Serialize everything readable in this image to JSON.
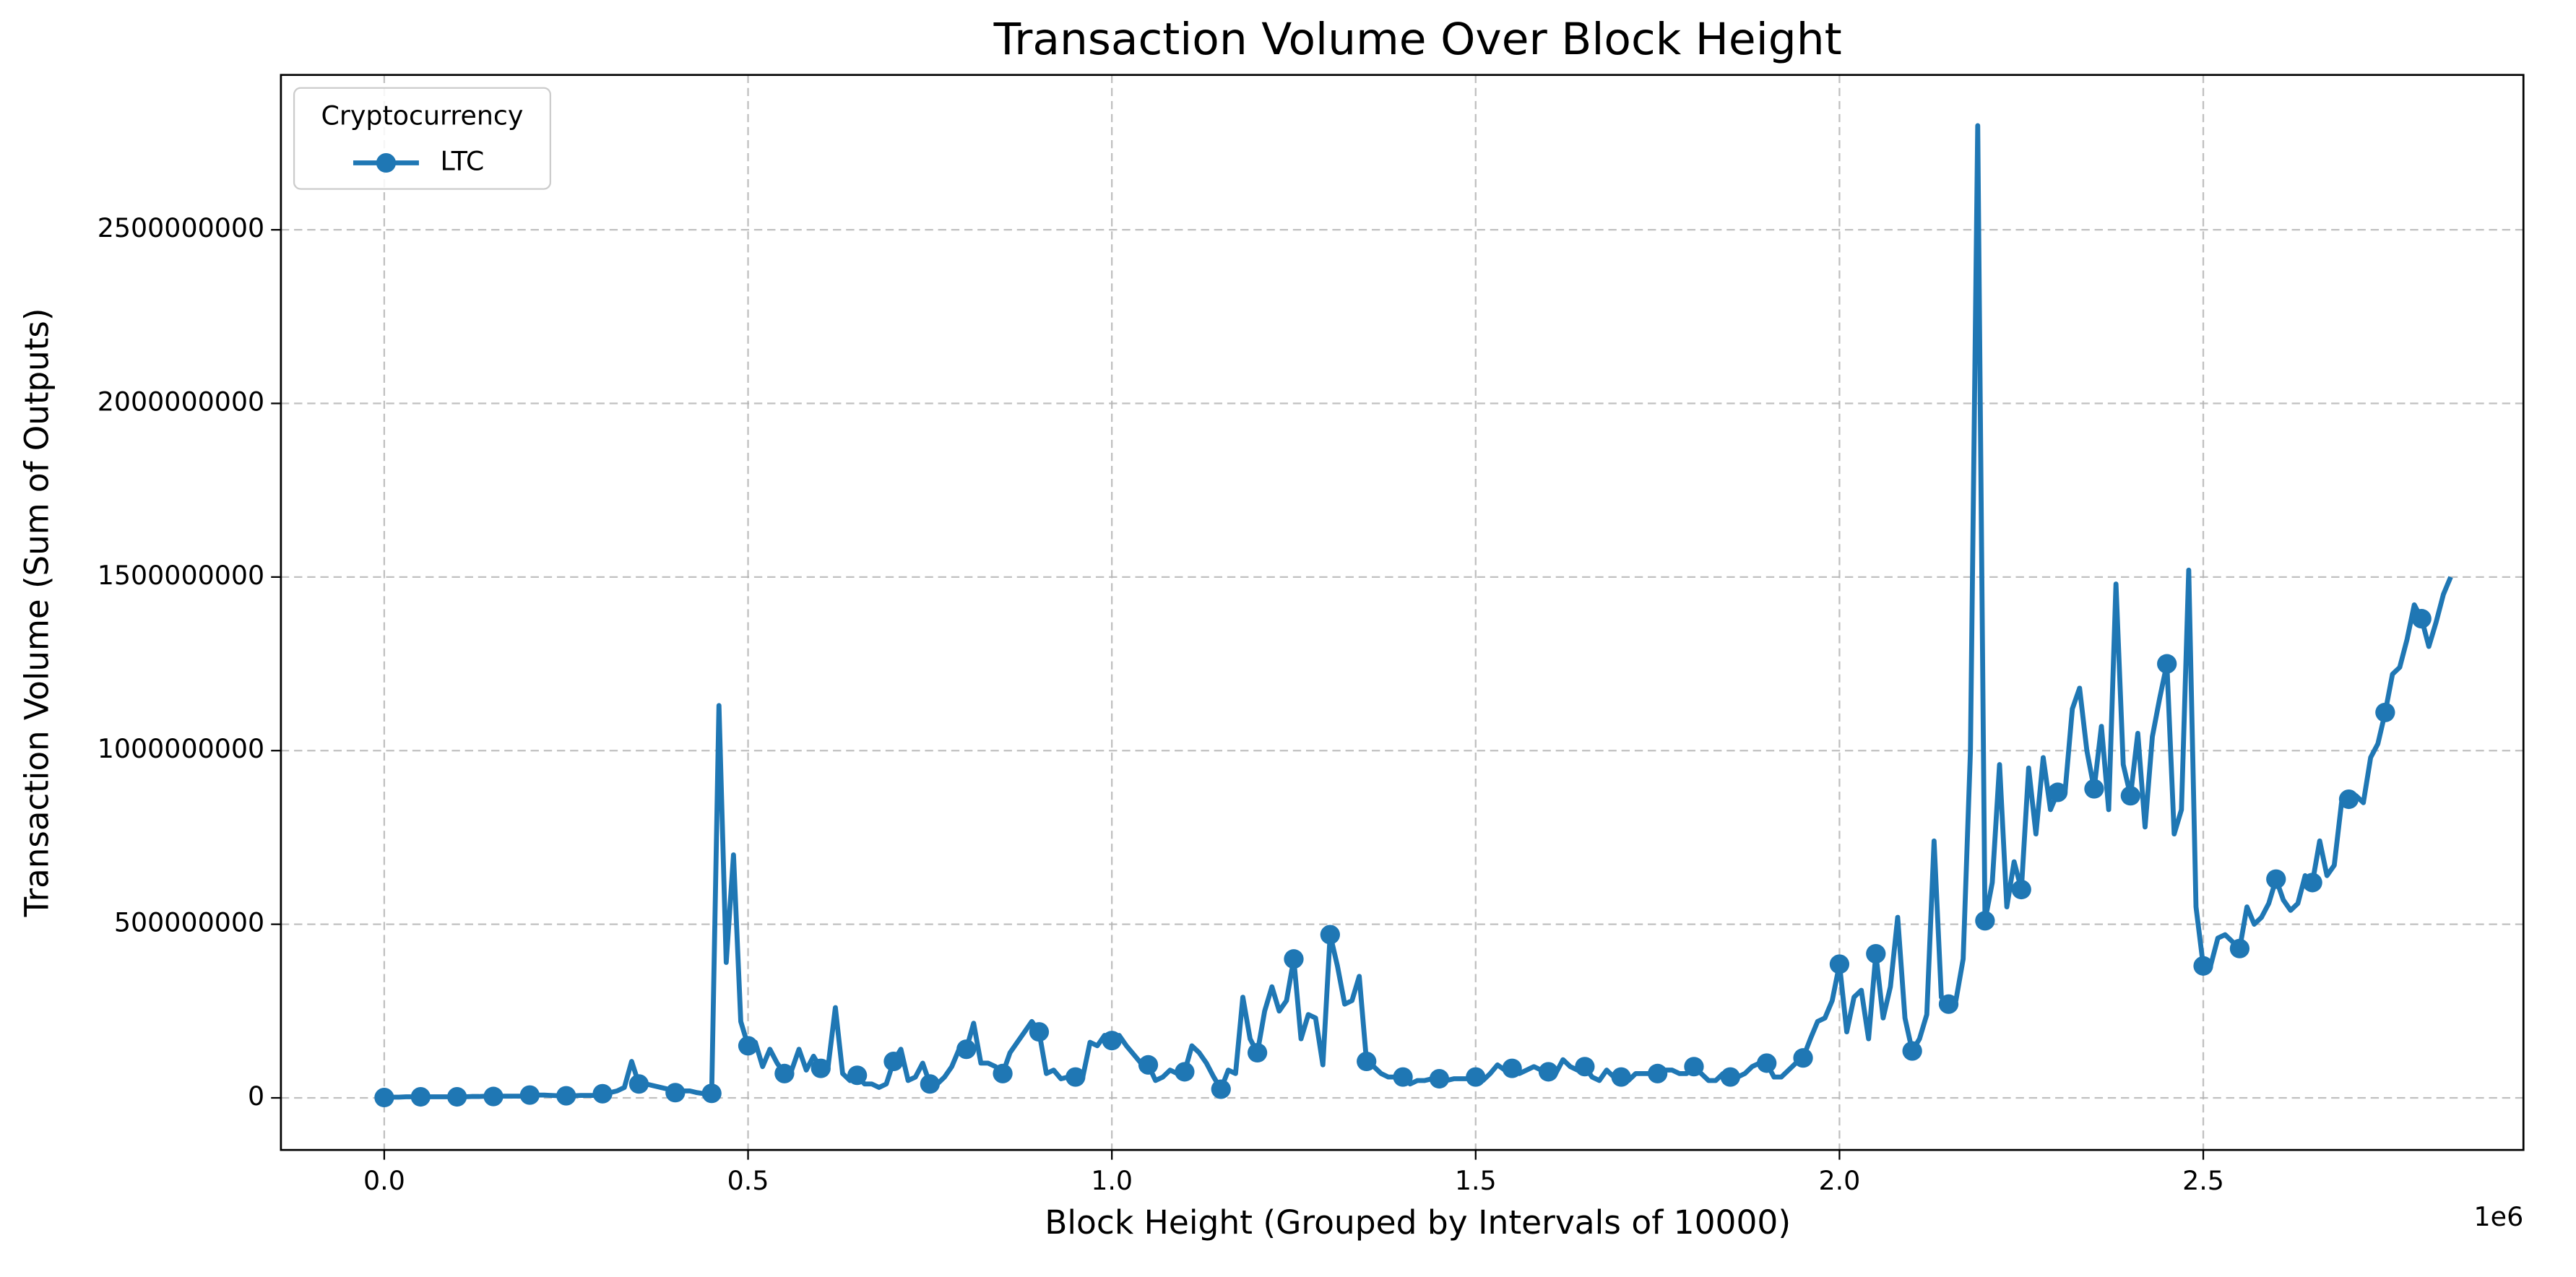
{
  "chart_data": {
    "type": "line",
    "title": "Transaction Volume Over Block Height",
    "xlabel": "Block Height (Grouped by Intervals of 10000)",
    "ylabel": "Transaction Volume (Sum of Outputs)",
    "x_offset_label": "1e6",
    "legend": {
      "title": "Cryptocurrency",
      "loc": "upper left"
    },
    "grid": true,
    "marker": "o",
    "markevery": 5,
    "xlim": [
      -142000,
      2940000
    ],
    "ylim": [
      -150000000,
      2946000000
    ],
    "xticks": [
      {
        "value": 0,
        "label": "0.0"
      },
      {
        "value": 500000,
        "label": "0.5"
      },
      {
        "value": 1000000,
        "label": "1.0"
      },
      {
        "value": 1500000,
        "label": "1.5"
      },
      {
        "value": 2000000,
        "label": "2.0"
      },
      {
        "value": 2500000,
        "label": "2.5"
      }
    ],
    "yticks": [
      0,
      500000000,
      1000000000,
      1500000000,
      2000000000,
      2500000000
    ],
    "x": [
      0,
      10000,
      20000,
      30000,
      40000,
      50000,
      60000,
      70000,
      80000,
      90000,
      100000,
      110000,
      120000,
      130000,
      140000,
      150000,
      160000,
      170000,
      180000,
      190000,
      200000,
      210000,
      220000,
      230000,
      240000,
      250000,
      260000,
      270000,
      280000,
      290000,
      300000,
      310000,
      320000,
      330000,
      340000,
      350000,
      360000,
      370000,
      380000,
      390000,
      400000,
      410000,
      420000,
      430000,
      440000,
      450000,
      460000,
      470000,
      480000,
      490000,
      500000,
      510000,
      520000,
      530000,
      540000,
      550000,
      560000,
      570000,
      580000,
      590000,
      600000,
      610000,
      620000,
      630000,
      640000,
      650000,
      660000,
      670000,
      680000,
      690000,
      700000,
      710000,
      720000,
      730000,
      740000,
      750000,
      760000,
      770000,
      780000,
      790000,
      800000,
      810000,
      820000,
      830000,
      840000,
      850000,
      860000,
      870000,
      880000,
      890000,
      900000,
      910000,
      920000,
      930000,
      940000,
      950000,
      960000,
      970000,
      980000,
      990000,
      1000000,
      1010000,
      1020000,
      1030000,
      1040000,
      1050000,
      1060000,
      1070000,
      1080000,
      1090000,
      1100000,
      1110000,
      1120000,
      1130000,
      1140000,
      1150000,
      1160000,
      1170000,
      1180000,
      1190000,
      1200000,
      1210000,
      1220000,
      1230000,
      1240000,
      1250000,
      1260000,
      1270000,
      1280000,
      1290000,
      1300000,
      1310000,
      1320000,
      1330000,
      1340000,
      1350000,
      1360000,
      1370000,
      1380000,
      1390000,
      1400000,
      1410000,
      1420000,
      1430000,
      1440000,
      1450000,
      1460000,
      1470000,
      1480000,
      1490000,
      1500000,
      1510000,
      1520000,
      1530000,
      1540000,
      1550000,
      1560000,
      1570000,
      1580000,
      1590000,
      1600000,
      1610000,
      1620000,
      1630000,
      1640000,
      1650000,
      1660000,
      1670000,
      1680000,
      1690000,
      1700000,
      1710000,
      1720000,
      1730000,
      1740000,
      1750000,
      1760000,
      1770000,
      1780000,
      1790000,
      1800000,
      1810000,
      1820000,
      1830000,
      1840000,
      1850000,
      1860000,
      1870000,
      1880000,
      1890000,
      1900000,
      1910000,
      1920000,
      1930000,
      1940000,
      1950000,
      1960000,
      1970000,
      1980000,
      1990000,
      2000000,
      2010000,
      2020000,
      2030000,
      2040000,
      2050000,
      2060000,
      2070000,
      2080000,
      2090000,
      2100000,
      2110000,
      2120000,
      2130000,
      2140000,
      2150000,
      2160000,
      2170000,
      2180000,
      2190000,
      2200000,
      2210000,
      2220000,
      2230000,
      2240000,
      2250000,
      2260000,
      2270000,
      2280000,
      2290000,
      2300000,
      2310000,
      2320000,
      2330000,
      2340000,
      2350000,
      2360000,
      2370000,
      2380000,
      2390000,
      2400000,
      2410000,
      2420000,
      2430000,
      2440000,
      2450000,
      2460000,
      2470000,
      2480000,
      2490000,
      2500000,
      2510000,
      2520000,
      2530000,
      2540000,
      2550000,
      2560000,
      2570000,
      2580000,
      2590000,
      2600000,
      2610000,
      2620000,
      2630000,
      2640000,
      2650000,
      2660000,
      2670000,
      2680000,
      2690000,
      2700000,
      2710000,
      2720000,
      2730000,
      2740000,
      2750000,
      2760000,
      2770000,
      2780000,
      2790000,
      2800000,
      2810000,
      2820000,
      2830000,
      2840000
    ],
    "series": [
      {
        "name": "LTC",
        "color": "#1f77b4",
        "values": [
          1000000.0,
          2000000.0,
          2000000.0,
          3000000.0,
          3000000.0,
          3000000.0,
          3000000.0,
          3000000.0,
          3000000.0,
          3000000.0,
          3000000.0,
          3000000.0,
          4000000.0,
          4000000.0,
          5000000.0,
          4000000.0,
          5000000.0,
          5000000.0,
          5000000.0,
          5000000.0,
          8000000.0,
          8000000.0,
          8000000.0,
          7000000.0,
          6000000.0,
          6000000.0,
          6000000.0,
          7000000.0,
          7000000.0,
          7000000.0,
          12000000.0,
          15000000.0,
          20000000.0,
          30000000.0,
          105000000.0,
          40000000.0,
          40000000.0,
          35000000.0,
          30000000.0,
          25000000.0,
          15000000.0,
          20000000.0,
          20000000.0,
          15000000.0,
          12000000.0,
          13000000.0,
          1130000000.0,
          390000000.0,
          700000000.0,
          220000000.0,
          150000000.0,
          160000000.0,
          90000000.0,
          140000000.0,
          100000000.0,
          70000000.0,
          80000000.0,
          140000000.0,
          80000000.0,
          120000000.0,
          85000000.0,
          90000000.0,
          260000000.0,
          70000000.0,
          50000000.0,
          65000000.0,
          40000000.0,
          40000000.0,
          30000000.0,
          40000000.0,
          105000000.0,
          140000000.0,
          50000000.0,
          60000000.0,
          100000000.0,
          40000000.0,
          40000000.0,
          60000000.0,
          90000000.0,
          140000000.0,
          140000000.0,
          215000000.0,
          100000000.0,
          100000000.0,
          90000000.0,
          70000000.0,
          130000000.0,
          160000000.0,
          190000000.0,
          220000000.0,
          190000000.0,
          70000000.0,
          80000000.0,
          55000000.0,
          60000000.0,
          60000000.0,
          60000000.0,
          160000000.0,
          150000000.0,
          180000000.0,
          165000000.0,
          180000000.0,
          150000000.0,
          125000000.0,
          100000000.0,
          95000000.0,
          50000000.0,
          60000000.0,
          80000000.0,
          70000000.0,
          75000000.0,
          150000000.0,
          130000000.0,
          100000000.0,
          60000000.0,
          25000000.0,
          80000000.0,
          70000000.0,
          290000000.0,
          170000000.0,
          130000000.0,
          250000000.0,
          320000000.0,
          250000000.0,
          280000000.0,
          400000000.0,
          170000000.0,
          240000000.0,
          230000000.0,
          95000000.0,
          470000000.0,
          380000000.0,
          270000000.0,
          280000000.0,
          350000000.0,
          105000000.0,
          90000000.0,
          70000000.0,
          60000000.0,
          60000000.0,
          60000000.0,
          40000000.0,
          50000000.0,
          50000000.0,
          55000000.0,
          55000000.0,
          50000000.0,
          55000000.0,
          55000000.0,
          55000000.0,
          60000000.0,
          50000000.0,
          70000000.0,
          95000000.0,
          80000000.0,
          85000000.0,
          70000000.0,
          80000000.0,
          90000000.0,
          80000000.0,
          75000000.0,
          70000000.0,
          110000000.0,
          90000000.0,
          80000000.0,
          90000000.0,
          60000000.0,
          50000000.0,
          80000000.0,
          60000000.0,
          60000000.0,
          50000000.0,
          70000000.0,
          70000000.0,
          70000000.0,
          70000000.0,
          80000000.0,
          80000000.0,
          70000000.0,
          70000000.0,
          90000000.0,
          70000000.0,
          50000000.0,
          50000000.0,
          70000000.0,
          60000000.0,
          60000000.0,
          70000000.0,
          90000000.0,
          100000000.0,
          100000000.0,
          60000000.0,
          60000000.0,
          80000000.0,
          100000000.0,
          115000000.0,
          170000000.0,
          220000000.0,
          230000000.0,
          280000000.0,
          385000000.0,
          190000000.0,
          290000000.0,
          310000000.0,
          170000000.0,
          415000000.0,
          230000000.0,
          320000000.0,
          520000000.0,
          230000000.0,
          135000000.0,
          170000000.0,
          240000000.0,
          740000000.0,
          290000000.0,
          270000000.0,
          280000000.0,
          400000000.0,
          1000000000.0,
          2800000000.0,
          510000000.0,
          620000000.0,
          960000000.0,
          550000000.0,
          680000000.0,
          600000000.0,
          950000000.0,
          760000000.0,
          980000000.0,
          830000000.0,
          880000000.0,
          880000000.0,
          1120000000.0,
          1180000000.0,
          1000000000.0,
          890000000.0,
          1070000000.0,
          830000000.0,
          1480000000.0,
          960000000.0,
          870000000.0,
          1050000000.0,
          780000000.0,
          1040000000.0,
          1150000000.0,
          1250000000.0,
          760000000.0,
          830000000.0,
          1520000000.0,
          550000000.0,
          380000000.0,
          380000000.0,
          460000000.0,
          470000000.0,
          450000000.0,
          430000000.0,
          550000000.0,
          500000000.0,
          520000000.0,
          560000000.0,
          630000000.0,
          570000000.0,
          540000000.0,
          560000000.0,
          640000000.0,
          620000000.0,
          740000000.0,
          640000000.0,
          670000000.0,
          850000000.0,
          860000000.0,
          870000000.0,
          850000000.0,
          980000000.0,
          1020000000.0,
          1110000000.0,
          1220000000.0,
          1240000000.0,
          1320000000.0,
          1420000000.0,
          1380000000.0,
          1300000000.0,
          1370000000.0,
          1450000000.0,
          1500000000.0
        ]
      }
    ]
  }
}
